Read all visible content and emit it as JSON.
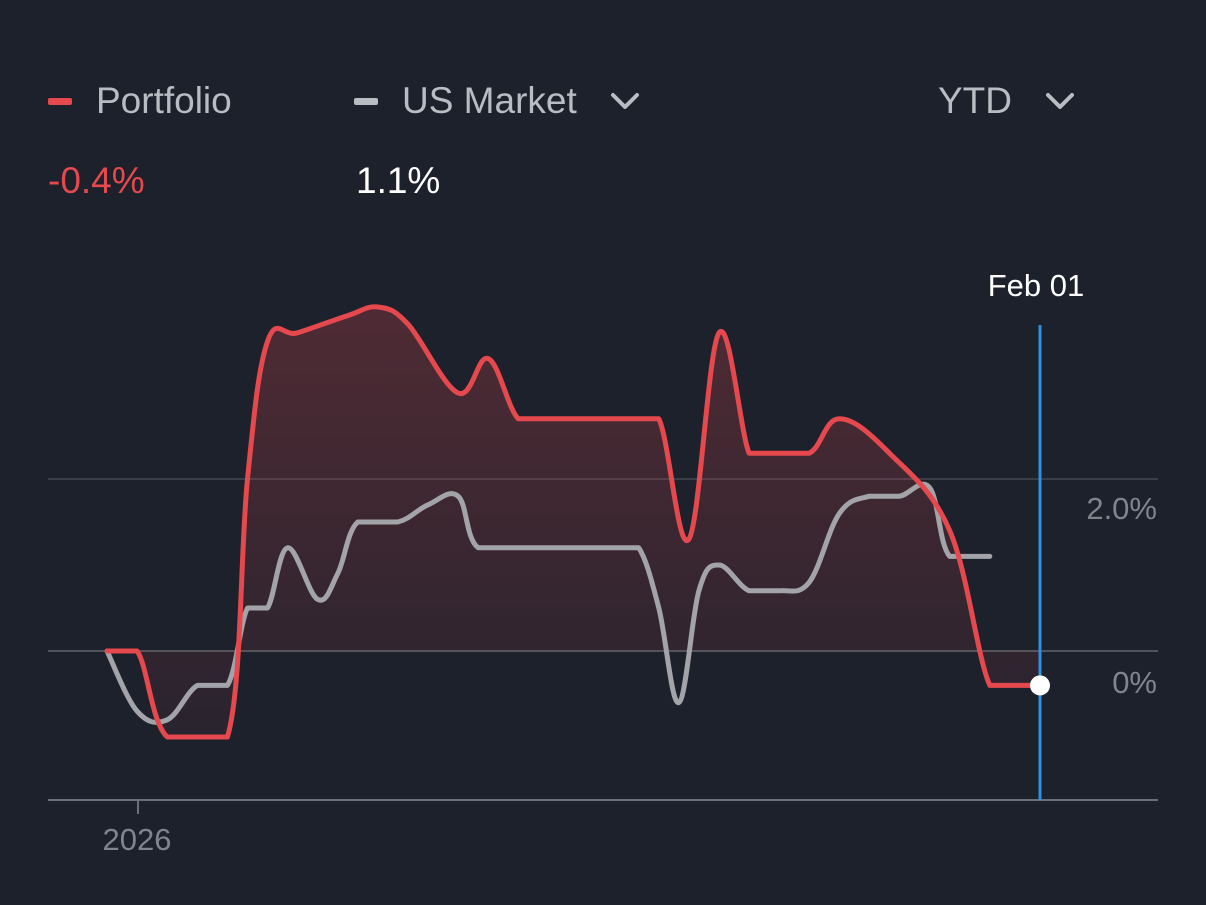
{
  "legend": {
    "portfolio": {
      "label": "Portfolio",
      "value": "-0.4%",
      "color": "#e5484d"
    },
    "market": {
      "label": "US Market",
      "value": "1.1%",
      "color": "#a3a4aa",
      "dropdown_icon": "chevron-down-icon"
    },
    "period": {
      "label": "YTD",
      "dropdown_icon": "chevron-down-icon"
    }
  },
  "crosshair": {
    "label": "Feb 01",
    "color": "#2f8fe0"
  },
  "chart_data": {
    "type": "line",
    "x_tick_label": "2026",
    "y_tick_labels": [
      "2.0%",
      "0%"
    ],
    "ylim": [
      -1.8,
      5.5
    ],
    "grid": true,
    "fill_between": true,
    "series": [
      {
        "name": "Portfolio",
        "color": "#e5484d",
        "points": [
          [
            0,
            0
          ],
          [
            3,
            0
          ],
          [
            6,
            -1
          ],
          [
            12,
            -1
          ],
          [
            14,
            2
          ],
          [
            16,
            3.6
          ],
          [
            19,
            3.7
          ],
          [
            24,
            3.9
          ],
          [
            27,
            4
          ],
          [
            30,
            3.8
          ],
          [
            35,
            3
          ],
          [
            38,
            3.4
          ],
          [
            41,
            2.7
          ],
          [
            44,
            2.7
          ],
          [
            48,
            2.7
          ],
          [
            52,
            2.7
          ],
          [
            55,
            2.7
          ],
          [
            58,
            1.3
          ],
          [
            61,
            3.7
          ],
          [
            64,
            2.3
          ],
          [
            66,
            2.3
          ],
          [
            70,
            2.3
          ],
          [
            73,
            2.7
          ],
          [
            78,
            2.3
          ],
          [
            84,
            1.4
          ],
          [
            88,
            -0.4
          ],
          [
            91,
            -0.4
          ],
          [
            93,
            -0.4
          ]
        ]
      },
      {
        "name": "US Market",
        "color": "#a3a4aa",
        "points": [
          [
            0,
            0
          ],
          [
            3,
            -0.7
          ],
          [
            6,
            -0.8
          ],
          [
            9,
            -0.4
          ],
          [
            12,
            -0.4
          ],
          [
            14,
            0.5
          ],
          [
            16,
            0.5
          ],
          [
            18,
            1.2
          ],
          [
            21,
            0.6
          ],
          [
            23,
            0.9
          ],
          [
            25,
            1.5
          ],
          [
            29,
            1.5
          ],
          [
            32,
            1.7
          ],
          [
            35,
            1.8
          ],
          [
            37,
            1.2
          ],
          [
            42,
            1.2
          ],
          [
            45,
            1.2
          ],
          [
            48,
            1.2
          ],
          [
            51,
            1.2
          ],
          [
            53,
            1.2
          ],
          [
            55,
            0.5
          ],
          [
            57,
            -0.6
          ],
          [
            59,
            0.7
          ],
          [
            61,
            1
          ],
          [
            64,
            0.7
          ],
          [
            67,
            0.7
          ],
          [
            70,
            0.8
          ],
          [
            73,
            1.6
          ],
          [
            76,
            1.8
          ],
          [
            79,
            1.8
          ],
          [
            82,
            1.9
          ],
          [
            84,
            1.1
          ],
          [
            88,
            1.1
          ]
        ]
      }
    ]
  }
}
